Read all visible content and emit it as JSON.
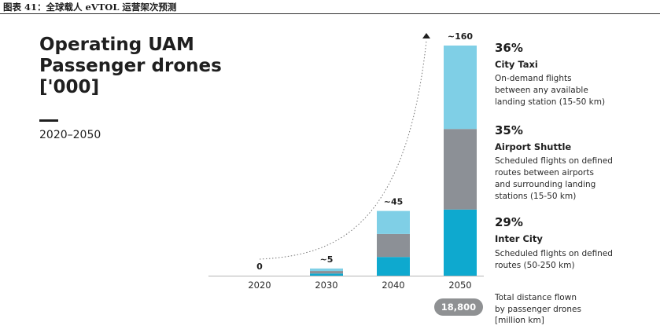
{
  "caption": "图表 41：全球载人 eVTOL 运营架次预测",
  "title_lines": [
    "Operating UAM",
    "Passenger drones",
    "['000]"
  ],
  "period": "2020–2050",
  "colors": {
    "city_taxi": "#7fcfe6",
    "airport_shuttle": "#8c9096",
    "inter_city": "#0ea9cf",
    "pct_city": "#56c5e3",
    "pct_airport": "#8e9195",
    "pct_inter": "#13a9cf",
    "axis": "#b5b5b5"
  },
  "segments": [
    {
      "pct": "36%",
      "name": "City Taxi",
      "desc": [
        "On-demand flights",
        "between any available",
        "landing station (15-50 km)"
      ]
    },
    {
      "pct": "35%",
      "name": "Airport Shuttle",
      "desc": [
        "Scheduled flights on defined",
        "routes between airports",
        "and surrounding landing",
        "stations (15-50 km)"
      ]
    },
    {
      "pct": "29%",
      "name": "Inter City",
      "desc": [
        "Scheduled flights on defined",
        "routes (50-250 km)"
      ]
    }
  ],
  "distance": {
    "value": "18,800",
    "lines": [
      "Total distance flown",
      "by passenger drones",
      "[million km]"
    ]
  },
  "chart_data": {
    "type": "bar",
    "stacked": true,
    "categories": [
      "2020",
      "2030",
      "2040",
      "2050"
    ],
    "total_labels": [
      "0",
      "~5",
      "~45",
      "~160"
    ],
    "totals": [
      0,
      5,
      45,
      160
    ],
    "series": [
      {
        "name": "Inter City",
        "values": [
          0,
          1.5,
          13,
          46
        ]
      },
      {
        "name": "Airport Shuttle",
        "values": [
          0,
          1.75,
          16,
          56
        ]
      },
      {
        "name": "City Taxi",
        "values": [
          0,
          1.75,
          16,
          58
        ]
      }
    ],
    "ylim": [
      0,
      160
    ],
    "grid": false,
    "legend": "right",
    "trend_arrow": true
  }
}
